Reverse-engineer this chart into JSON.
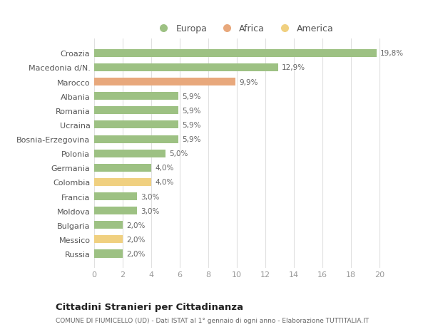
{
  "categories": [
    "Russia",
    "Messico",
    "Bulgaria",
    "Moldova",
    "Francia",
    "Colombia",
    "Germania",
    "Polonia",
    "Bosnia-Erzegovina",
    "Ucraina",
    "Romania",
    "Albania",
    "Marocco",
    "Macedonia d/N.",
    "Croazia"
  ],
  "values": [
    2.0,
    2.0,
    2.0,
    3.0,
    3.0,
    4.0,
    4.0,
    5.0,
    5.9,
    5.9,
    5.9,
    5.9,
    9.9,
    12.9,
    19.8
  ],
  "labels": [
    "2,0%",
    "2,0%",
    "2,0%",
    "3,0%",
    "3,0%",
    "4,0%",
    "4,0%",
    "5,0%",
    "5,9%",
    "5,9%",
    "5,9%",
    "5,9%",
    "9,9%",
    "12,9%",
    "19,8%"
  ],
  "continents": [
    "Europa",
    "America",
    "Europa",
    "Europa",
    "Europa",
    "America",
    "Europa",
    "Europa",
    "Europa",
    "Europa",
    "Europa",
    "Europa",
    "Africa",
    "Europa",
    "Europa"
  ],
  "colors": {
    "Europa": "#9dc183",
    "Africa": "#e8a87c",
    "America": "#f0d080"
  },
  "xlim": [
    0,
    21
  ],
  "xticks": [
    0,
    2,
    4,
    6,
    8,
    10,
    12,
    14,
    16,
    18,
    20
  ],
  "title1": "Cittadini Stranieri per Cittadinanza",
  "title2": "COMUNE DI FIUMICELLO (UD) - Dati ISTAT al 1° gennaio di ogni anno - Elaborazione TUTTITALIA.IT",
  "background_color": "#ffffff",
  "grid_color": "#e0e0e0"
}
